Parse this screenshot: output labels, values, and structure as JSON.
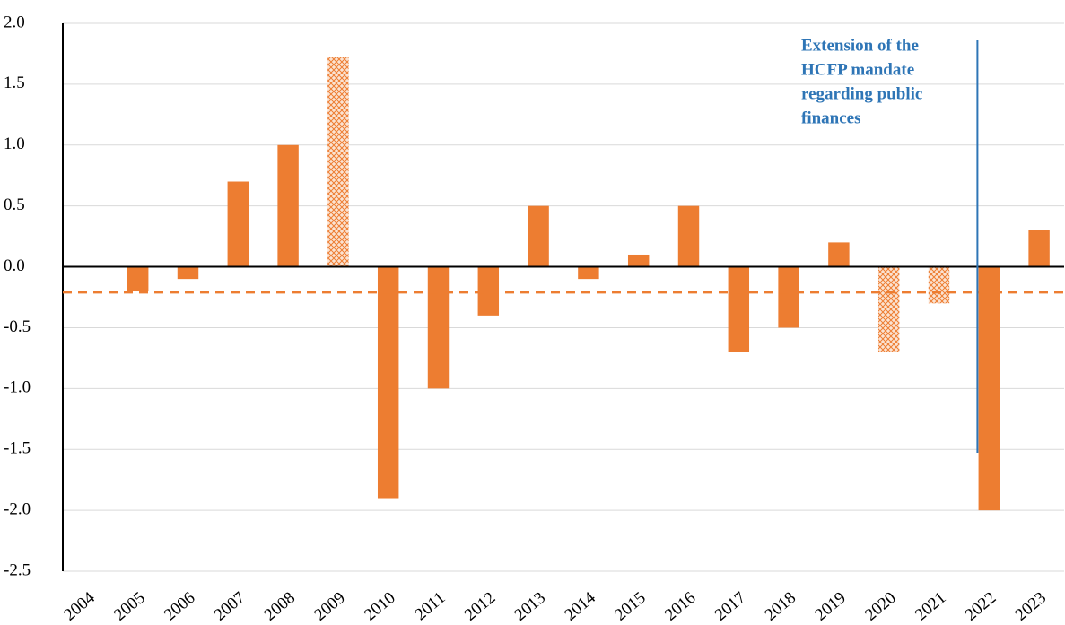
{
  "chart_data": {
    "type": "bar",
    "categories": [
      "2004",
      "2005",
      "2006",
      "2007",
      "2008",
      "2009",
      "2010",
      "2011",
      "2012",
      "2013",
      "2014",
      "2015",
      "2016",
      "2017",
      "2018",
      "2019",
      "2020",
      "2021",
      "2022",
      "2023"
    ],
    "values": [
      null,
      -0.2,
      -0.1,
      0.7,
      1.0,
      1.72,
      -1.9,
      -1.0,
      -0.4,
      0.5,
      -0.1,
      0.1,
      0.5,
      -0.7,
      -0.5,
      0.2,
      -0.7,
      -0.3,
      -2.0,
      0.3
    ],
    "hatched": [
      false,
      false,
      false,
      false,
      false,
      true,
      false,
      false,
      false,
      false,
      false,
      false,
      false,
      false,
      false,
      false,
      true,
      true,
      false,
      false
    ],
    "color": "#ed7d31",
    "reference_line": -0.21,
    "annotation": [
      "Extension of the",
      "HCFP mandate",
      "regarding public",
      "finances"
    ],
    "ylim": [
      -2.5,
      2.0
    ],
    "yticks": [
      {
        "value": -2.5,
        "label": "-2.5"
      },
      {
        "value": -2.0,
        "label": "-2.0"
      },
      -1.5,
      {
        "value": -1.0,
        "label": "-1.0"
      },
      -0.5,
      {
        "value": 0,
        "label": "0.0"
      },
      0.5,
      {
        "value": 1.0,
        "label": "1.0"
      },
      1.5,
      {
        "value": 2.0,
        "label": "2.0"
      }
    ],
    "grid": true
  }
}
